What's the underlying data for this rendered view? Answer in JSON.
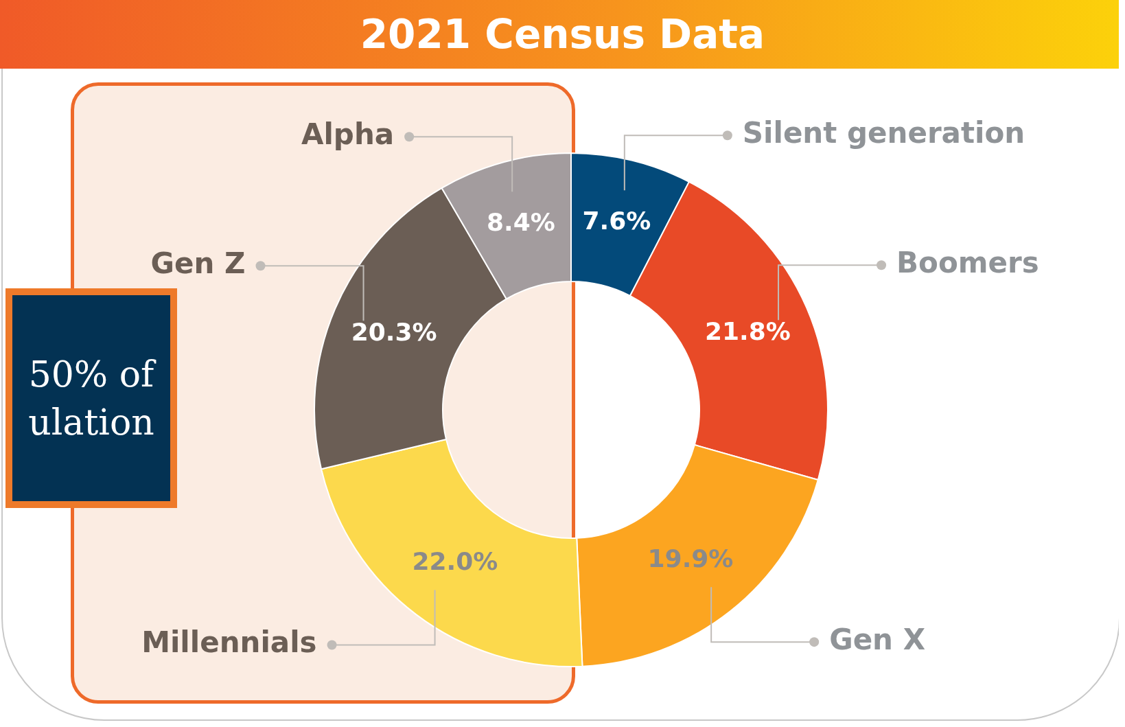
{
  "chart_data": {
    "type": "donut",
    "title": "2021 Census Data",
    "categories": [
      "Silent generation",
      "Boomers",
      "Gen X",
      "Millennials",
      "Gen Z",
      "Alpha"
    ],
    "values": [
      7.6,
      21.8,
      19.9,
      22.0,
      20.3,
      8.4
    ],
    "colors": [
      "#034a7a",
      "#e84a27",
      "#fca520",
      "#fcd94c",
      "#6b5e55",
      "#a39c9e"
    ],
    "value_labels": [
      "7.6%",
      "21.8%",
      "19.9%",
      "22.0%",
      "20.3%",
      "8.4%"
    ],
    "annotations": [
      "50% of ulation"
    ],
    "legend": false
  }
}
